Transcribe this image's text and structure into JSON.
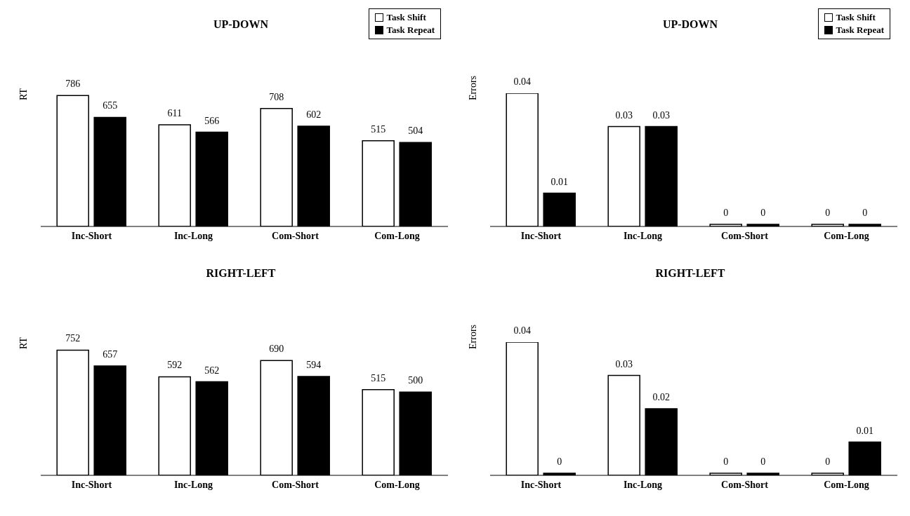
{
  "chart_data": [
    {
      "type": "bar",
      "title": "UP-DOWN",
      "ylabel": "RT",
      "categories": [
        "Inc-Short",
        "Inc-Long",
        "Com-Short",
        "Com-Long"
      ],
      "series": [
        {
          "name": "Task Shift",
          "color": "#ffffff",
          "values": [
            786,
            611,
            708,
            515
          ]
        },
        {
          "name": "Task Repeat",
          "color": "#000000",
          "values": [
            655,
            566,
            602,
            504
          ]
        }
      ],
      "data_labels": true,
      "grid": false,
      "legend": "top right",
      "tick_labels": "x"
    },
    {
      "type": "bar",
      "title": "UP-DOWN",
      "ylabel": "Errors",
      "categories": [
        "Inc-Short",
        "Inc-Long",
        "Com-Short",
        "Com-Long"
      ],
      "series": [
        {
          "name": "Task Shift",
          "color": "#ffffff",
          "values": [
            0.04,
            0.03,
            0,
            0
          ]
        },
        {
          "name": "Task Repeat",
          "color": "#000000",
          "values": [
            0.01,
            0.03,
            0,
            0
          ]
        }
      ],
      "data_labels": true,
      "grid": false,
      "legend": "top right",
      "tick_labels": "x"
    },
    {
      "type": "bar",
      "title": "RIGHT-LEFT",
      "ylabel": "RT",
      "categories": [
        "Inc-Short",
        "Inc-Long",
        "Com-Short",
        "Com-Long"
      ],
      "series": [
        {
          "color": "#ffffff",
          "values": [
            752,
            592,
            690,
            515
          ]
        },
        {
          "color": "#000000",
          "values": [
            657,
            562,
            594,
            500
          ]
        }
      ],
      "data_labels": true,
      "grid": false,
      "tick_labels": "x"
    },
    {
      "type": "bar",
      "title": "RIGHT-LEFT",
      "ylabel": "Errors",
      "categories": [
        "Inc-Short",
        "Inc-Long",
        "Com-Short",
        "Com-Long"
      ],
      "series": [
        {
          "color": "#ffffff",
          "values": [
            0.04,
            0.03,
            0,
            0
          ]
        },
        {
          "color": "#000000",
          "values": [
            0,
            0.02,
            0,
            0.01
          ]
        }
      ],
      "data_labels": true,
      "grid": false,
      "tick_labels": "x"
    }
  ]
}
